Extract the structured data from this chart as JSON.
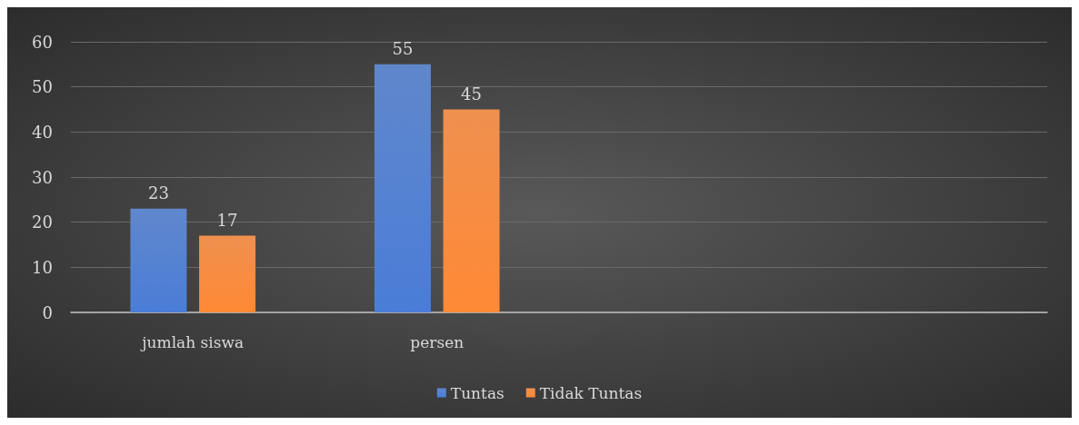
{
  "chart_data": {
    "type": "bar",
    "categories": [
      "jumlah siswa",
      "persen",
      null,
      null
    ],
    "series": [
      {
        "name": "Tuntas",
        "color": "#4472c4",
        "values": [
          23,
          55,
          null,
          null
        ]
      },
      {
        "name": "Tidak Tuntas",
        "color": "#ed7d31",
        "values": [
          17,
          45,
          null,
          null
        ]
      }
    ],
    "ylim": [
      0,
      60
    ],
    "yticks": [
      0,
      10,
      20,
      30,
      40,
      50,
      60
    ],
    "grid": "y",
    "legend": "bottom",
    "data_labels": true
  }
}
